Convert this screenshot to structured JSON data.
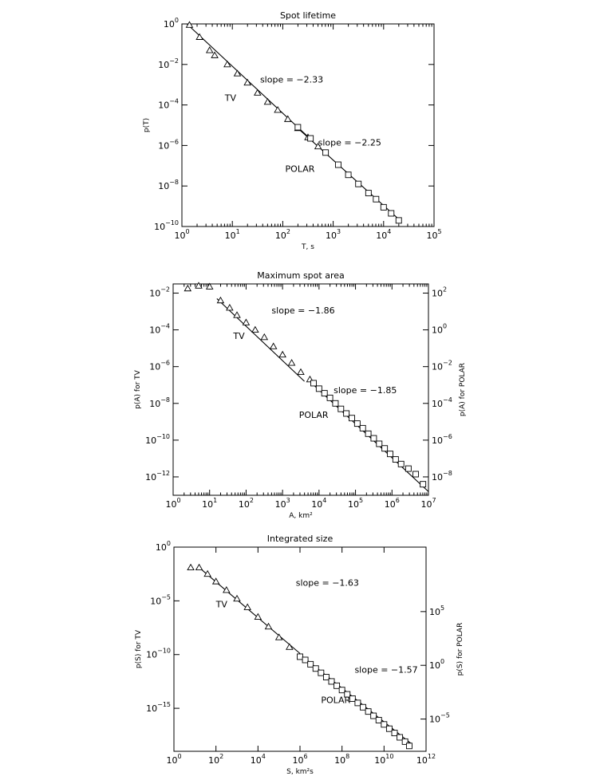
{
  "chart_data": [
    {
      "type": "scatter",
      "title": "Spot lifetime",
      "xlabel": "T, s",
      "ylabel": "p(T)",
      "ylabel_right": "",
      "xscale": "log",
      "yscale": "log",
      "xlim_exp": [
        0,
        5
      ],
      "ylim_exp": [
        -10,
        0
      ],
      "xticks_exp": [
        0,
        1,
        2,
        3,
        4,
        5
      ],
      "yticks_exp": [
        -10,
        -8,
        -6,
        -4,
        -2,
        0
      ],
      "yticks_right_exp": [],
      "right_offset_exp": 0,
      "series": [
        {
          "name": "TV",
          "marker": "triangle",
          "points": [
            [
              0.15,
              -0.05
            ],
            [
              0.35,
              -0.65
            ],
            [
              0.55,
              -1.3
            ],
            [
              0.65,
              -1.55
            ],
            [
              0.9,
              -2.0
            ],
            [
              1.1,
              -2.45
            ],
            [
              1.3,
              -2.9
            ],
            [
              1.5,
              -3.4
            ],
            [
              1.7,
              -3.85
            ],
            [
              1.9,
              -4.25
            ],
            [
              2.1,
              -4.7
            ],
            [
              2.3,
              -5.15
            ],
            [
              2.5,
              -5.6
            ],
            [
              2.7,
              -6.05
            ]
          ]
        },
        {
          "name": "POLAR",
          "marker": "square",
          "points": [
            [
              2.3,
              -5.1
            ],
            [
              2.55,
              -5.65
            ],
            [
              2.85,
              -6.35
            ],
            [
              3.1,
              -6.95
            ],
            [
              3.3,
              -7.45
            ],
            [
              3.5,
              -7.9
            ],
            [
              3.7,
              -8.35
            ],
            [
              3.85,
              -8.65
            ],
            [
              4.0,
              -9.05
            ],
            [
              4.15,
              -9.35
            ],
            [
              4.3,
              -9.7
            ]
          ]
        }
      ],
      "fits": [
        {
          "slope_label": "slope = −2.33",
          "from": [
            0.1,
            0.0
          ],
          "to": [
            2.6,
            -5.8
          ]
        },
        {
          "slope_label": "slope = −2.25",
          "from": [
            2.3,
            -5.15
          ],
          "to": [
            4.35,
            -9.75
          ]
        }
      ],
      "annotations": [
        {
          "text": "slope = −2.33",
          "x": 1.55,
          "y": -2.9
        },
        {
          "text": "TV",
          "x": 0.85,
          "y": -3.8
        },
        {
          "text": "slope = −2.25",
          "x": 2.7,
          "y": -6.0
        },
        {
          "text": "POLAR",
          "x": 2.05,
          "y": -7.3
        }
      ]
    },
    {
      "type": "scatter",
      "title": "Maximum spot area",
      "xlabel": "A, km²",
      "ylabel": "p(A) for TV",
      "ylabel_right": "p(A) for POLAR",
      "xscale": "log",
      "yscale": "log",
      "xlim_exp": [
        0,
        7
      ],
      "ylim_exp": [
        -13,
        -1.5
      ],
      "xticks_exp": [
        0,
        1,
        2,
        3,
        4,
        5,
        6,
        7
      ],
      "yticks_exp": [
        -12,
        -10,
        -8,
        -6,
        -4,
        -2
      ],
      "yticks_right_exp": [
        -8,
        -6,
        -4,
        -2,
        0,
        2
      ],
      "right_offset_exp": -4,
      "series": [
        {
          "name": "TV",
          "marker": "triangle",
          "points": [
            [
              0.4,
              -1.75
            ],
            [
              0.7,
              -1.6
            ],
            [
              1.0,
              -1.65
            ],
            [
              1.3,
              -2.4
            ],
            [
              1.55,
              -2.8
            ],
            [
              1.75,
              -3.2
            ],
            [
              2.0,
              -3.6
            ],
            [
              2.25,
              -4.0
            ],
            [
              2.5,
              -4.4
            ],
            [
              2.75,
              -4.9
            ],
            [
              3.0,
              -5.35
            ],
            [
              3.25,
              -5.8
            ],
            [
              3.5,
              -6.3
            ],
            [
              3.75,
              -6.7
            ]
          ]
        },
        {
          "name": "POLAR",
          "marker": "square",
          "points": [
            [
              3.85,
              -6.9
            ],
            [
              4.0,
              -7.2
            ],
            [
              4.15,
              -7.45
            ],
            [
              4.3,
              -7.7
            ],
            [
              4.45,
              -8.0
            ],
            [
              4.6,
              -8.3
            ],
            [
              4.75,
              -8.55
            ],
            [
              4.9,
              -8.8
            ],
            [
              5.05,
              -9.1
            ],
            [
              5.2,
              -9.35
            ],
            [
              5.35,
              -9.65
            ],
            [
              5.5,
              -9.9
            ],
            [
              5.65,
              -10.2
            ],
            [
              5.8,
              -10.45
            ],
            [
              5.95,
              -10.75
            ],
            [
              6.1,
              -11.05
            ],
            [
              6.25,
              -11.3
            ],
            [
              6.45,
              -11.55
            ],
            [
              6.65,
              -11.85
            ],
            [
              6.85,
              -12.4
            ]
          ]
        }
      ],
      "fits": [
        {
          "slope_label": "slope = −1.86",
          "from": [
            1.2,
            -2.3
          ],
          "to": [
            3.6,
            -6.8
          ]
        },
        {
          "slope_label": "slope = −1.85",
          "from": [
            3.8,
            -6.9
          ],
          "to": [
            7.0,
            -12.8
          ]
        }
      ],
      "annotations": [
        {
          "text": "slope = −1.86",
          "x": 2.7,
          "y": -3.1
        },
        {
          "text": "TV",
          "x": 1.65,
          "y": -4.5
        },
        {
          "text": "slope = −1.85",
          "x": 4.4,
          "y": -7.45
        },
        {
          "text": "POLAR",
          "x": 3.45,
          "y": -8.8
        }
      ]
    },
    {
      "type": "scatter",
      "title": "Integrated size",
      "xlabel": "S, km²s",
      "ylabel": "p(S) for TV",
      "ylabel_right": "p(S) for POLAR",
      "xscale": "log",
      "yscale": "log",
      "xlim_exp": [
        0,
        12
      ],
      "ylim_exp": [
        -19,
        0
      ],
      "xticks_exp": [
        0,
        2,
        4,
        6,
        8,
        10,
        12
      ],
      "yticks_exp": [
        -15,
        -10,
        -5,
        0
      ],
      "yticks_right_exp": [
        -5,
        0,
        5
      ],
      "right_offset_exp": -11,
      "series": [
        {
          "name": "TV",
          "marker": "triangle",
          "points": [
            [
              0.8,
              -1.9
            ],
            [
              1.2,
              -1.9
            ],
            [
              1.6,
              -2.5
            ],
            [
              2.0,
              -3.2
            ],
            [
              2.5,
              -4.0
            ],
            [
              3.0,
              -4.8
            ],
            [
              3.5,
              -5.6
            ],
            [
              4.0,
              -6.5
            ],
            [
              4.5,
              -7.4
            ],
            [
              5.0,
              -8.4
            ],
            [
              5.5,
              -9.3
            ]
          ]
        },
        {
          "name": "POLAR",
          "marker": "square",
          "points": [
            [
              6.0,
              -10.2
            ],
            [
              6.25,
              -10.5
            ],
            [
              6.5,
              -10.9
            ],
            [
              6.75,
              -11.3
            ],
            [
              7.0,
              -11.7
            ],
            [
              7.25,
              -12.1
            ],
            [
              7.5,
              -12.5
            ],
            [
              7.75,
              -12.9
            ],
            [
              8.0,
              -13.3
            ],
            [
              8.25,
              -13.7
            ],
            [
              8.5,
              -14.1
            ],
            [
              8.75,
              -14.5
            ],
            [
              9.0,
              -14.9
            ],
            [
              9.25,
              -15.3
            ],
            [
              9.5,
              -15.7
            ],
            [
              9.75,
              -16.1
            ],
            [
              10.0,
              -16.5
            ],
            [
              10.25,
              -16.9
            ],
            [
              10.5,
              -17.3
            ],
            [
              10.75,
              -17.7
            ],
            [
              11.0,
              -18.1
            ],
            [
              11.2,
              -18.5
            ]
          ]
        }
      ],
      "fits": [
        {
          "slope_label": "slope = −1.63",
          "from": [
            1.2,
            -1.9
          ],
          "to": [
            6.0,
            -9.9
          ]
        },
        {
          "slope_label": "slope = −1.57",
          "from": [
            6.0,
            -10.0
          ],
          "to": [
            11.3,
            -18.3
          ]
        }
      ],
      "annotations": [
        {
          "text": "slope = −1.63",
          "x": 5.8,
          "y": -3.6
        },
        {
          "text": "TV",
          "x": 2.0,
          "y": -5.6
        },
        {
          "text": "slope = −1.57",
          "x": 8.6,
          "y": -11.7
        },
        {
          "text": "POLAR",
          "x": 7.0,
          "y": -14.5
        }
      ]
    }
  ]
}
